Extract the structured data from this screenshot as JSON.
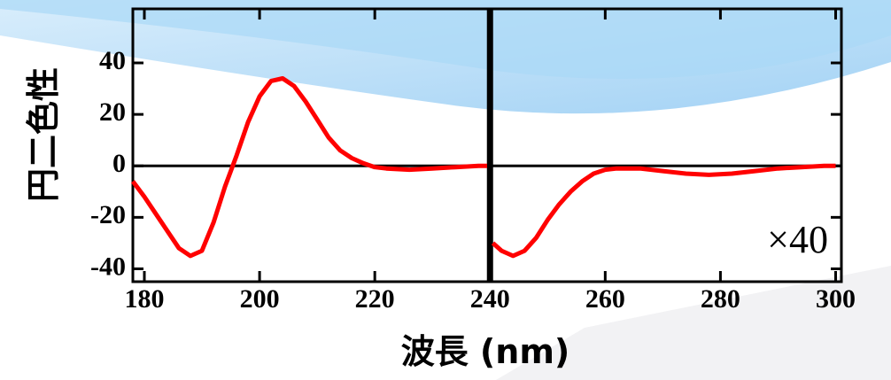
{
  "chart_data": {
    "type": "line",
    "xlabel": "波長 (nm)",
    "ylabel": "円二色性",
    "annotation": "×40",
    "x": [
      178,
      180,
      183,
      186,
      188,
      190,
      192,
      194,
      196,
      198,
      200,
      202,
      204,
      206,
      208,
      210,
      212,
      214,
      216,
      218,
      220,
      222,
      226,
      230,
      234,
      238,
      239.5,
      null,
      240.5,
      242,
      244,
      246,
      248,
      250,
      252,
      254,
      256,
      258,
      260,
      262,
      266,
      270,
      274,
      278,
      282,
      286,
      290,
      294,
      298,
      300
    ],
    "values": [
      -6,
      -12,
      -22,
      -32,
      -35,
      -33,
      -22,
      -8,
      4,
      17,
      27,
      33,
      34,
      31,
      25,
      18,
      11,
      6,
      3,
      1,
      -0.5,
      -1,
      -1.5,
      -1,
      -0.5,
      0,
      0,
      null,
      -30,
      -33,
      -35,
      -33,
      -28,
      -21,
      -15,
      -10,
      -6,
      -3,
      -1.5,
      -1,
      -1,
      -2,
      -3,
      -3.5,
      -3,
      -2,
      -1,
      -0.5,
      0,
      0
    ],
    "color": "#ff0000",
    "hline": 0,
    "vline": 240,
    "xlim": [
      178,
      301
    ],
    "ylim": [
      -45,
      61
    ],
    "xticks": [
      180,
      200,
      220,
      240,
      260,
      280,
      300
    ],
    "yticks": [
      -40,
      -20,
      0,
      20,
      40
    ]
  }
}
